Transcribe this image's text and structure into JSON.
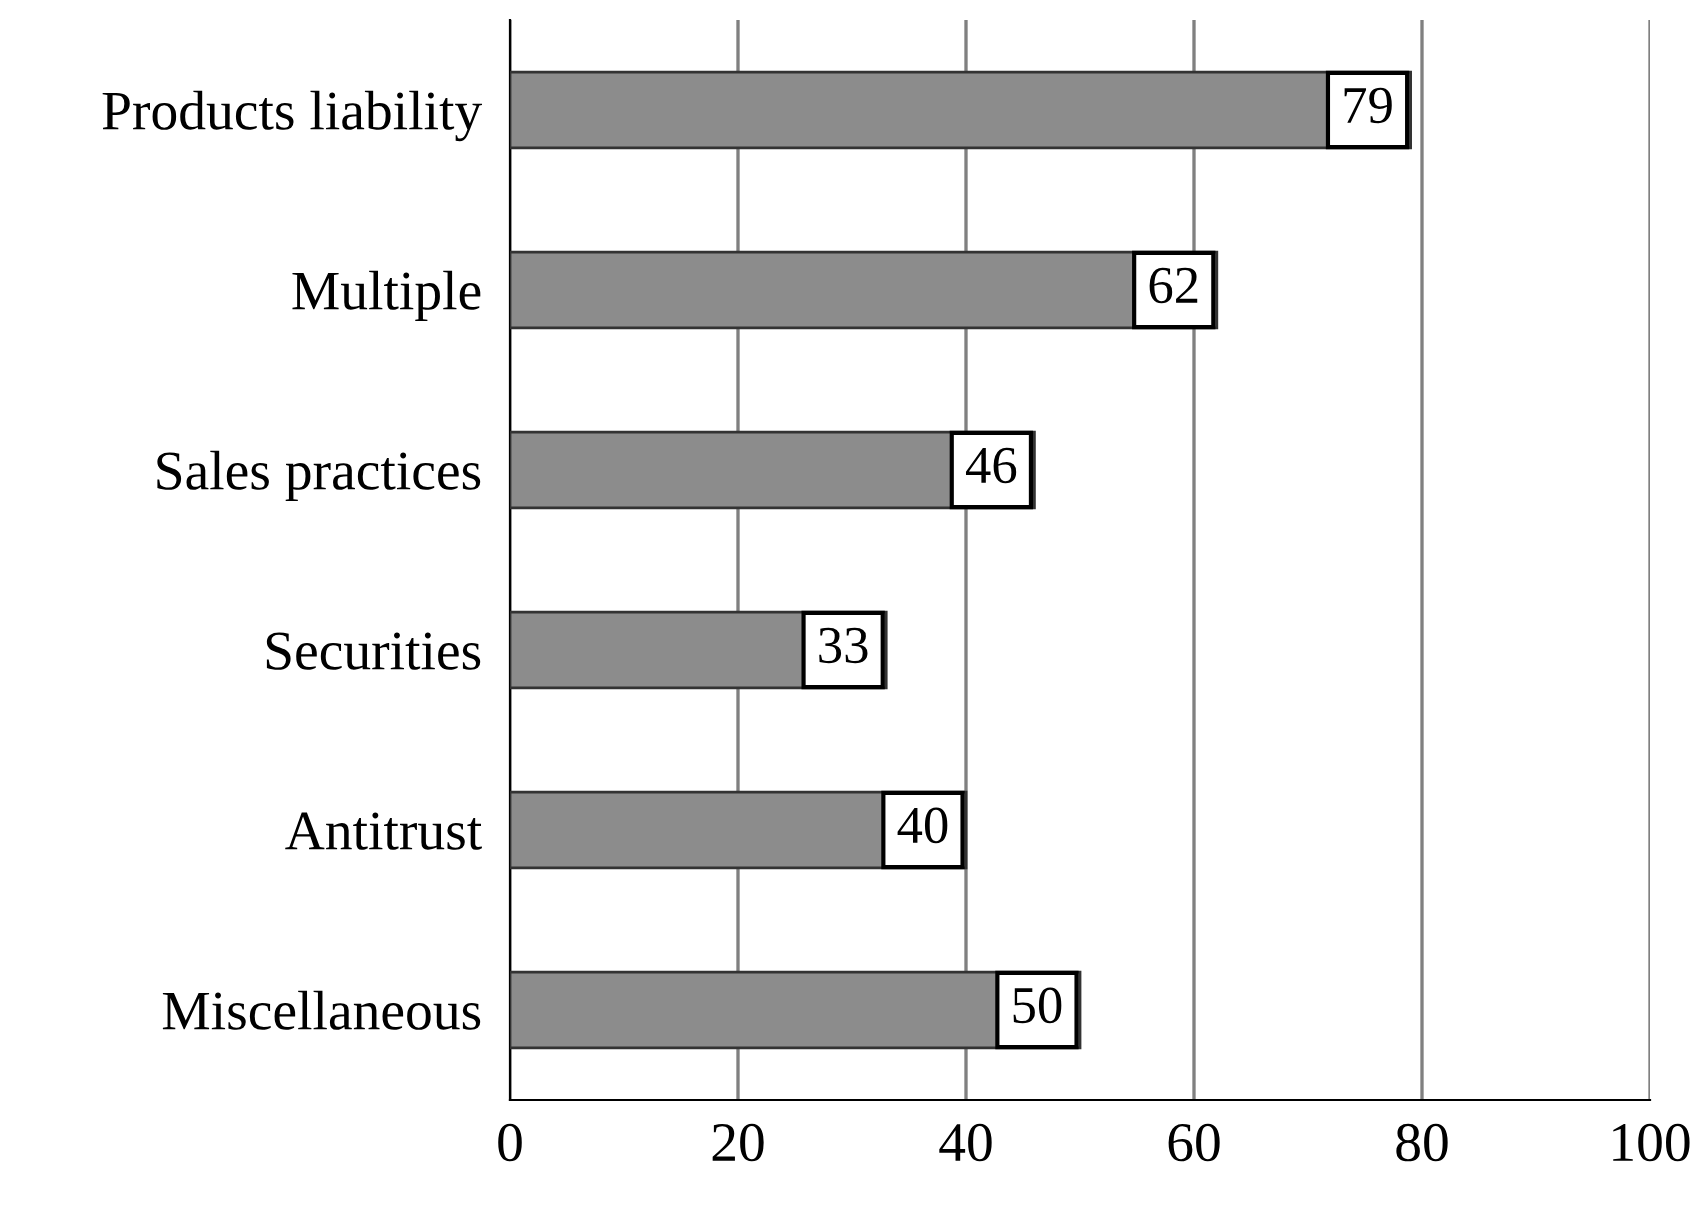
{
  "chart_data": {
    "type": "bar",
    "orientation": "horizontal",
    "categories": [
      "Products liability",
      "Multiple",
      "Sales practices",
      "Securities",
      "Antitrust",
      "Miscellaneous"
    ],
    "values": [
      79,
      62,
      46,
      33,
      40,
      50
    ],
    "color": "#8c8c8c",
    "xlim": [
      0,
      100
    ],
    "xticks": [
      0,
      20,
      40,
      60,
      80,
      100
    ],
    "grid": "x",
    "data_labels": true,
    "legend": false
  }
}
